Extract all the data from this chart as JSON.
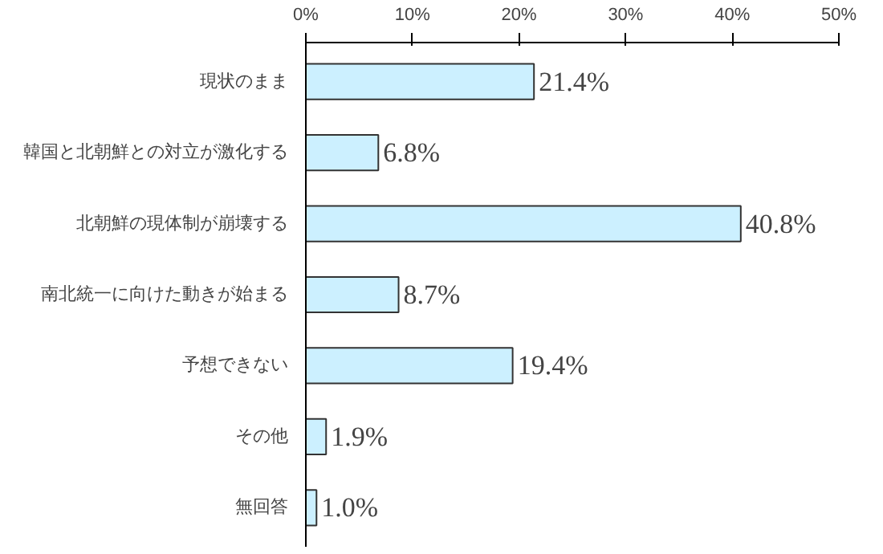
{
  "chart_data": {
    "type": "bar",
    "orientation": "horizontal",
    "categories": [
      "現状のまま",
      "韓国と北朝鮮との対立が激化する",
      "北朝鮮の現体制が崩壊する",
      "南北統一に向けた動きが始まる",
      "予想できない",
      "その他",
      "無回答"
    ],
    "values": [
      21.4,
      6.8,
      40.8,
      8.7,
      19.4,
      1.9,
      1.0
    ],
    "value_labels": [
      "21.4%",
      "6.8%",
      "40.8%",
      "8.7%",
      "19.4%",
      "1.9%",
      "1.0%"
    ],
    "color": "#ccf0ff",
    "xlim": [
      0,
      50
    ],
    "xticks": [
      {
        "value": 0,
        "label": "0%"
      },
      {
        "value": 10,
        "label": "10%"
      },
      {
        "value": 20,
        "label": "20%"
      },
      {
        "value": 30,
        "label": "30%"
      },
      {
        "value": 40,
        "label": "40%"
      },
      {
        "value": 50,
        "label": "50%"
      }
    ],
    "grid": false
  }
}
